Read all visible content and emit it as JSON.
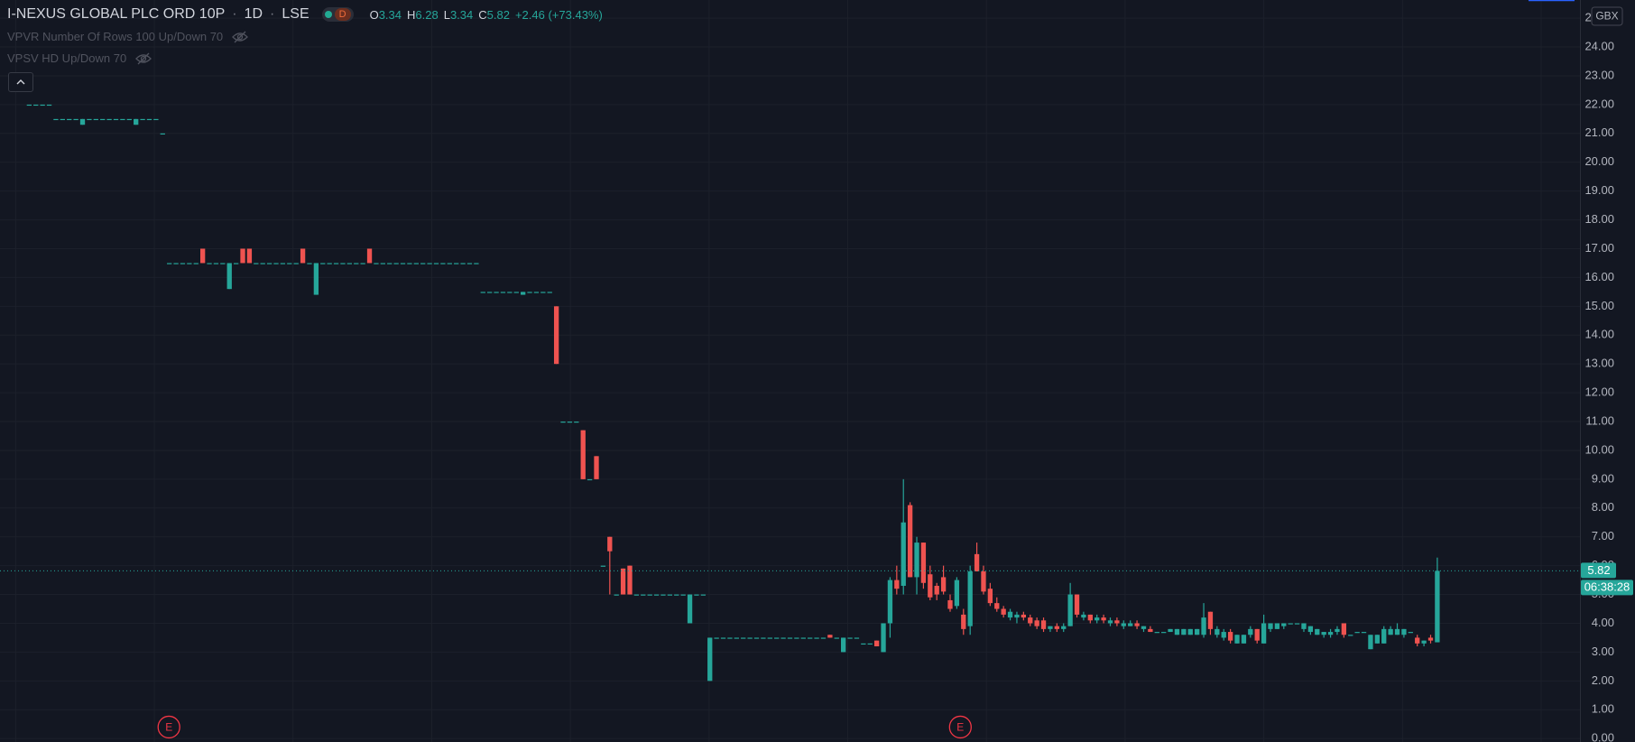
{
  "header": {
    "symbol": "I-NEXUS GLOBAL PLC ORD 10P",
    "interval": "1D",
    "exchange": "LSE",
    "badge": "D",
    "ohlc_letters": [
      "O",
      "H",
      "L",
      "C"
    ],
    "change": "+2.46 (+73.43%)"
  },
  "indicators": [
    "VPVR Number Of Rows 100 Up/Down 70",
    "VPSV HD Up/Down 70"
  ],
  "currency": "GBX",
  "countdown": "06:38:28",
  "events": [
    "E",
    "E"
  ],
  "chart_data": {
    "type": "candlestick",
    "up_color": "#26a69a",
    "down_color": "#ef5350",
    "grid": true,
    "ylim": [
      -0.12,
      25.63
    ],
    "yticks": [
      {
        "value": 0,
        "label": "0.00"
      },
      {
        "value": 1,
        "label": "1.00"
      },
      {
        "value": 2,
        "label": "2.00"
      },
      {
        "value": 3,
        "label": "3.00"
      },
      {
        "value": 4,
        "label": "4.00"
      },
      {
        "value": 5,
        "label": "5.00"
      },
      {
        "value": 6,
        "label": "6.00"
      },
      {
        "value": 7,
        "label": "7.00"
      },
      {
        "value": 8,
        "label": "8.00"
      },
      {
        "value": 9,
        "label": "9.00"
      },
      {
        "value": 10,
        "label": "10.00"
      },
      {
        "value": 11,
        "label": "11.00"
      },
      {
        "value": 12,
        "label": "12.00"
      },
      {
        "value": 13,
        "label": "13.00"
      },
      {
        "value": 14,
        "label": "14.00"
      },
      {
        "value": 15,
        "label": "15.00"
      },
      {
        "value": 16,
        "label": "16.00"
      },
      {
        "value": 17,
        "label": "17.00"
      },
      {
        "value": 18,
        "label": "18.00"
      },
      {
        "value": 19,
        "label": "19.00"
      },
      {
        "value": 20,
        "label": "20.00"
      },
      {
        "value": 21,
        "label": "21.00"
      },
      {
        "value": 22,
        "label": "22.00"
      },
      {
        "value": 23,
        "label": "23.00"
      },
      {
        "value": 24,
        "label": "24.00"
      },
      {
        "value": 25,
        "label": "25.00"
      }
    ],
    "ohlc": [
      [
        22,
        22,
        22,
        22
      ],
      [
        22,
        22,
        22,
        22
      ],
      [
        22,
        22,
        22,
        22
      ],
      [
        22,
        22,
        22,
        22
      ],
      [
        21.5,
        21.5,
        21.5,
        21.5
      ],
      [
        21.5,
        21.5,
        21.5,
        21.5
      ],
      [
        21.5,
        21.5,
        21.5,
        21.5
      ],
      [
        21.5,
        21.5,
        21.5,
        21.5
      ],
      [
        21.3,
        21.5,
        21.3,
        21.5
      ],
      [
        21.5,
        21.5,
        21.5,
        21.5
      ],
      [
        21.5,
        21.5,
        21.5,
        21.5
      ],
      [
        21.5,
        21.5,
        21.5,
        21.5
      ],
      [
        21.5,
        21.5,
        21.5,
        21.5
      ],
      [
        21.5,
        21.5,
        21.5,
        21.5
      ],
      [
        21.5,
        21.5,
        21.5,
        21.5
      ],
      [
        21.5,
        21.5,
        21.5,
        21.5
      ],
      [
        21.3,
        21.5,
        21.3,
        21.5
      ],
      [
        21.5,
        21.5,
        21.5,
        21.5
      ],
      [
        21.5,
        21.5,
        21.5,
        21.5
      ],
      [
        21.5,
        21.5,
        21.5,
        21.5
      ],
      [
        21,
        21,
        21,
        21
      ],
      [
        16.5,
        16.5,
        16.5,
        16.5
      ],
      [
        16.5,
        16.5,
        16.5,
        16.5
      ],
      [
        16.5,
        16.5,
        16.5,
        16.5
      ],
      [
        16.5,
        16.5,
        16.5,
        16.5
      ],
      [
        16.5,
        16.5,
        16.5,
        16.5
      ],
      [
        17,
        17,
        16.5,
        16.5
      ],
      [
        16.5,
        16.5,
        16.5,
        16.5
      ],
      [
        16.5,
        16.5,
        16.5,
        16.5
      ],
      [
        16.5,
        16.5,
        16.5,
        16.5
      ],
      [
        15.6,
        16.5,
        15.6,
        16.5
      ],
      [
        16.5,
        16.5,
        16.5,
        16.5
      ],
      [
        17,
        17,
        16.5,
        16.5
      ],
      [
        17,
        17,
        16.5,
        16.5
      ],
      [
        16.5,
        16.5,
        16.5,
        16.5
      ],
      [
        16.5,
        16.5,
        16.5,
        16.5
      ],
      [
        16.5,
        16.5,
        16.5,
        16.5
      ],
      [
        16.5,
        16.5,
        16.5,
        16.5
      ],
      [
        16.5,
        16.5,
        16.5,
        16.5
      ],
      [
        16.5,
        16.5,
        16.5,
        16.5
      ],
      [
        16.5,
        16.5,
        16.5,
        16.5
      ],
      [
        17,
        17,
        16.5,
        16.5
      ],
      [
        16.5,
        16.5,
        16.5,
        16.5
      ],
      [
        15.4,
        16.5,
        15.4,
        16.5
      ],
      [
        16.5,
        16.5,
        16.5,
        16.5
      ],
      [
        16.5,
        16.5,
        16.5,
        16.5
      ],
      [
        16.5,
        16.5,
        16.5,
        16.5
      ],
      [
        16.5,
        16.5,
        16.5,
        16.5
      ],
      [
        16.5,
        16.5,
        16.5,
        16.5
      ],
      [
        16.5,
        16.5,
        16.5,
        16.5
      ],
      [
        16.5,
        16.5,
        16.5,
        16.5
      ],
      [
        17,
        17,
        16.5,
        16.5
      ],
      [
        16.5,
        16.5,
        16.5,
        16.5
      ],
      [
        16.5,
        16.5,
        16.5,
        16.5
      ],
      [
        16.5,
        16.5,
        16.5,
        16.5
      ],
      [
        16.5,
        16.5,
        16.5,
        16.5
      ],
      [
        16.5,
        16.5,
        16.5,
        16.5
      ],
      [
        16.5,
        16.5,
        16.5,
        16.5
      ],
      [
        16.5,
        16.5,
        16.5,
        16.5
      ],
      [
        16.5,
        16.5,
        16.5,
        16.5
      ],
      [
        16.5,
        16.5,
        16.5,
        16.5
      ],
      [
        16.5,
        16.5,
        16.5,
        16.5
      ],
      [
        16.5,
        16.5,
        16.5,
        16.5
      ],
      [
        16.5,
        16.5,
        16.5,
        16.5
      ],
      [
        16.5,
        16.5,
        16.5,
        16.5
      ],
      [
        16.5,
        16.5,
        16.5,
        16.5
      ],
      [
        16.5,
        16.5,
        16.5,
        16.5
      ],
      [
        16.5,
        16.5,
        16.5,
        16.5
      ],
      [
        15.5,
        15.5,
        15.5,
        15.5
      ],
      [
        15.5,
        15.5,
        15.5,
        15.5
      ],
      [
        15.5,
        15.5,
        15.5,
        15.5
      ],
      [
        15.5,
        15.5,
        15.5,
        15.5
      ],
      [
        15.5,
        15.5,
        15.5,
        15.5
      ],
      [
        15.5,
        15.5,
        15.5,
        15.5
      ],
      [
        15.4,
        15.5,
        15.4,
        15.5
      ],
      [
        15.5,
        15.5,
        15.5,
        15.5
      ],
      [
        15.5,
        15.5,
        15.5,
        15.5
      ],
      [
        15.5,
        15.5,
        15.5,
        15.5
      ],
      [
        15.5,
        15.5,
        15.5,
        15.5
      ],
      [
        15,
        15,
        13,
        13
      ],
      [
        11,
        11,
        11,
        11
      ],
      [
        11,
        11,
        11,
        11
      ],
      [
        11,
        11,
        11,
        11
      ],
      [
        10.7,
        10.7,
        9,
        9
      ],
      [
        9,
        9,
        9,
        9
      ],
      [
        9.8,
        9.8,
        9,
        9
      ],
      [
        6,
        6,
        6,
        6
      ],
      [
        7,
        7,
        5,
        6.5
      ],
      [
        5,
        5,
        5,
        5
      ],
      [
        5.9,
        5.9,
        5,
        5
      ],
      [
        6,
        6,
        5,
        5
      ],
      [
        5,
        5,
        5,
        5
      ],
      [
        5,
        5,
        5,
        5
      ],
      [
        5,
        5,
        5,
        5
      ],
      [
        5,
        5,
        5,
        5
      ],
      [
        5,
        5,
        5,
        5
      ],
      [
        5,
        5,
        5,
        5
      ],
      [
        5,
        5,
        5,
        5
      ],
      [
        5,
        5,
        5,
        5
      ],
      [
        4,
        5,
        4,
        5
      ],
      [
        5,
        5,
        5,
        5
      ],
      [
        5,
        5,
        5,
        5
      ],
      [
        2,
        3.5,
        2,
        3.5
      ],
      [
        3.5,
        3.5,
        3.5,
        3.5
      ],
      [
        3.5,
        3.5,
        3.5,
        3.5
      ],
      [
        3.5,
        3.5,
        3.5,
        3.5
      ],
      [
        3.5,
        3.5,
        3.5,
        3.5
      ],
      [
        3.5,
        3.5,
        3.5,
        3.5
      ],
      [
        3.5,
        3.5,
        3.5,
        3.5
      ],
      [
        3.5,
        3.5,
        3.5,
        3.5
      ],
      [
        3.5,
        3.5,
        3.5,
        3.5
      ],
      [
        3.5,
        3.5,
        3.5,
        3.5
      ],
      [
        3.5,
        3.5,
        3.5,
        3.5
      ],
      [
        3.5,
        3.5,
        3.5,
        3.5
      ],
      [
        3.5,
        3.5,
        3.5,
        3.5
      ],
      [
        3.5,
        3.5,
        3.5,
        3.5
      ],
      [
        3.5,
        3.5,
        3.5,
        3.5
      ],
      [
        3.5,
        3.5,
        3.5,
        3.5
      ],
      [
        3.5,
        3.5,
        3.5,
        3.5
      ],
      [
        3.5,
        3.5,
        3.5,
        3.5
      ],
      [
        3.6,
        3.6,
        3.5,
        3.5
      ],
      [
        3.5,
        3.5,
        3.5,
        3.5
      ],
      [
        3,
        3.5,
        3,
        3.5
      ],
      [
        3.5,
        3.5,
        3.5,
        3.5
      ],
      [
        3.5,
        3.5,
        3.5,
        3.5
      ],
      [
        3.3,
        3.3,
        3.3,
        3.3
      ],
      [
        3.3,
        3.3,
        3.3,
        3.3
      ],
      [
        3.4,
        3.4,
        3.2,
        3.2
      ],
      [
        3,
        4,
        3,
        4
      ],
      [
        4,
        5.6,
        3.5,
        5.5
      ],
      [
        5.5,
        6,
        5,
        5.2
      ],
      [
        5.3,
        9,
        5,
        7.5
      ],
      [
        8.1,
        8.2,
        5.6,
        5.6
      ],
      [
        5.6,
        7,
        5,
        6.8
      ],
      [
        6.8,
        6.8,
        5.2,
        5.4
      ],
      [
        5.7,
        6,
        4.8,
        4.9
      ],
      [
        5.3,
        5.4,
        4.8,
        5
      ],
      [
        5.6,
        6,
        5,
        5.1
      ],
      [
        4.8,
        5,
        4.4,
        4.5
      ],
      [
        4.6,
        5.6,
        4.5,
        5.5
      ],
      [
        4.3,
        4.5,
        3.6,
        3.8
      ],
      [
        3.9,
        6,
        3.6,
        5.8
      ],
      [
        6.4,
        6.8,
        5.8,
        5.8
      ],
      [
        5.8,
        6,
        5,
        5.1
      ],
      [
        5.2,
        5.4,
        4.6,
        4.7
      ],
      [
        4.7,
        4.9,
        4.4,
        4.5
      ],
      [
        4.5,
        4.6,
        4.2,
        4.3
      ],
      [
        4.2,
        4.5,
        4.1,
        4.4
      ],
      [
        4.2,
        4.4,
        4,
        4.3
      ],
      [
        4.3,
        4.4,
        4.1,
        4.2
      ],
      [
        4.2,
        4.3,
        3.9,
        4
      ],
      [
        4.1,
        4.2,
        3.8,
        3.9
      ],
      [
        4.1,
        4.2,
        3.7,
        3.8
      ],
      [
        3.8,
        3.9,
        3.7,
        3.9
      ],
      [
        3.9,
        4,
        3.7,
        3.8
      ],
      [
        3.8,
        4,
        3.7,
        3.9
      ],
      [
        3.9,
        5.4,
        3.9,
        5
      ],
      [
        5,
        5,
        4.2,
        4.3
      ],
      [
        4.2,
        4.4,
        4.1,
        4.3
      ],
      [
        4.3,
        4.3,
        4,
        4.1
      ],
      [
        4.1,
        4.3,
        4,
        4.2
      ],
      [
        4.2,
        4.3,
        4,
        4.1
      ],
      [
        4,
        4.2,
        3.9,
        4.1
      ],
      [
        4.1,
        4.2,
        3.9,
        4
      ],
      [
        3.9,
        4.1,
        3.8,
        4
      ],
      [
        3.9,
        4.1,
        3.9,
        4
      ],
      [
        4,
        4.1,
        3.8,
        3.9
      ],
      [
        3.8,
        3.9,
        3.7,
        3.9
      ],
      [
        3.8,
        3.9,
        3.7,
        3.7
      ],
      [
        3.7,
        3.7,
        3.7,
        3.7
      ],
      [
        3.7,
        3.7,
        3.7,
        3.7
      ],
      [
        3.7,
        3.8,
        3.7,
        3.8
      ],
      [
        3.6,
        3.8,
        3.6,
        3.8
      ],
      [
        3.6,
        3.8,
        3.6,
        3.8
      ],
      [
        3.6,
        3.8,
        3.6,
        3.8
      ],
      [
        3.6,
        3.8,
        3.6,
        3.8
      ],
      [
        3.6,
        4.7,
        3.5,
        4.2
      ],
      [
        4.4,
        4.4,
        3.6,
        3.8
      ],
      [
        3.6,
        3.9,
        3.5,
        3.8
      ],
      [
        3.5,
        3.8,
        3.4,
        3.7
      ],
      [
        3.7,
        3.8,
        3.3,
        3.4
      ],
      [
        3.3,
        3.6,
        3.3,
        3.6
      ],
      [
        3.3,
        3.6,
        3.3,
        3.6
      ],
      [
        3.6,
        3.9,
        3.5,
        3.8
      ],
      [
        3.8,
        3.8,
        3.3,
        3.4
      ],
      [
        3.3,
        4.3,
        3.3,
        4
      ],
      [
        3.8,
        4,
        3.7,
        4
      ],
      [
        3.8,
        4,
        3.8,
        4
      ],
      [
        3.9,
        4,
        3.8,
        4
      ],
      [
        4,
        4,
        4,
        4
      ],
      [
        4,
        4,
        4,
        4
      ],
      [
        3.8,
        4,
        3.7,
        4
      ],
      [
        3.7,
        3.9,
        3.6,
        3.9
      ],
      [
        3.6,
        3.8,
        3.6,
        3.8
      ],
      [
        3.6,
        3.7,
        3.5,
        3.7
      ],
      [
        3.6,
        3.8,
        3.5,
        3.7
      ],
      [
        3.7,
        3.9,
        3.6,
        3.8
      ],
      [
        4,
        4,
        3.5,
        3.6
      ],
      [
        3.6,
        3.6,
        3.6,
        3.6
      ],
      [
        3.7,
        3.7,
        3.7,
        3.7
      ],
      [
        3.7,
        3.7,
        3.7,
        3.7
      ],
      [
        3.1,
        3.6,
        3.1,
        3.6
      ],
      [
        3.3,
        3.6,
        3.3,
        3.6
      ],
      [
        3.3,
        3.9,
        3.3,
        3.8
      ],
      [
        3.6,
        3.9,
        3.6,
        3.8
      ],
      [
        3.6,
        4,
        3.6,
        3.8
      ],
      [
        3.6,
        3.8,
        3.5,
        3.8
      ],
      [
        3.7,
        3.7,
        3.7,
        3.7
      ],
      [
        3.5,
        3.6,
        3.2,
        3.3
      ],
      [
        3.3,
        3.4,
        3.2,
        3.4
      ],
      [
        3.5,
        3.6,
        3.3,
        3.4
      ],
      [
        3.34,
        6.28,
        3.34,
        5.82
      ]
    ]
  }
}
